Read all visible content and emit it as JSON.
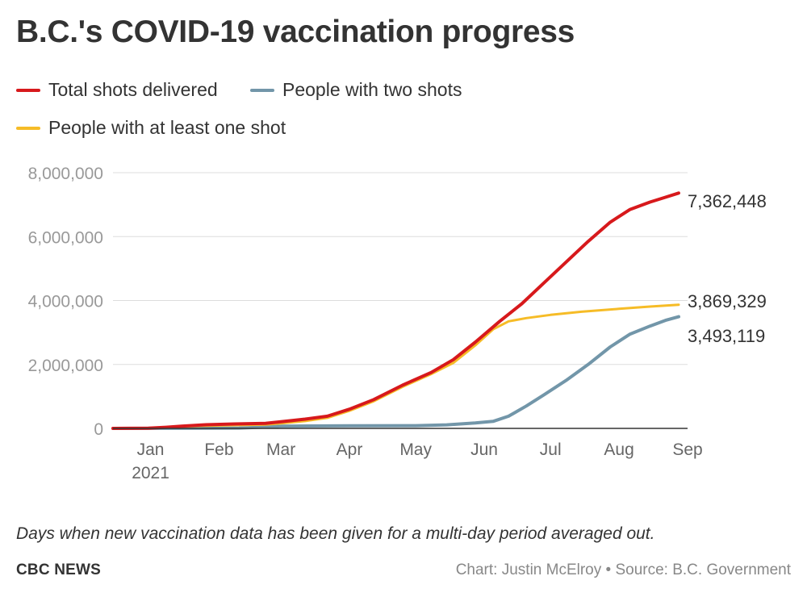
{
  "title": "B.C.'s COVID-19 vaccination progress",
  "footnote": "Days when new vaccination data has been given for a multi-day period averaged out.",
  "brand": "CBC NEWS",
  "credit": "Chart: Justin McElroy • Source: B.C. Government",
  "chart_data": {
    "type": "line",
    "x_unit": "date",
    "ylim": [
      0,
      8000000
    ],
    "xlim": [
      "2020-12-15",
      "2021-09-01"
    ],
    "y_ticks": [
      {
        "value": 0,
        "label": "0"
      },
      {
        "value": 2000000,
        "label": "2,000,000"
      },
      {
        "value": 4000000,
        "label": "4,000,000"
      },
      {
        "value": 6000000,
        "label": "6,000,000"
      },
      {
        "value": 8000000,
        "label": "8,000,000"
      }
    ],
    "x_ticks": [
      {
        "date": "2021-01-01",
        "label": "Jan",
        "sublabel": "2021"
      },
      {
        "date": "2021-02-01",
        "label": "Feb",
        "sublabel": ""
      },
      {
        "date": "2021-03-01",
        "label": "Mar",
        "sublabel": ""
      },
      {
        "date": "2021-04-01",
        "label": "Apr",
        "sublabel": ""
      },
      {
        "date": "2021-05-01",
        "label": "May",
        "sublabel": ""
      },
      {
        "date": "2021-06-01",
        "label": "Jun",
        "sublabel": ""
      },
      {
        "date": "2021-07-01",
        "label": "Jul",
        "sublabel": ""
      },
      {
        "date": "2021-08-01",
        "label": "Aug",
        "sublabel": ""
      },
      {
        "date": "2021-09-01",
        "label": "Sep",
        "sublabel": ""
      }
    ],
    "grid": true,
    "legend_position": "top-left",
    "series": [
      {
        "name": "Total shots delivered",
        "color": "#d7191c",
        "end_label": "7,362,448",
        "points": [
          [
            "2020-12-15",
            0
          ],
          [
            "2020-12-31",
            5000
          ],
          [
            "2021-01-08",
            35000
          ],
          [
            "2021-01-15",
            70000
          ],
          [
            "2021-01-25",
            110000
          ],
          [
            "2021-02-08",
            140000
          ],
          [
            "2021-02-22",
            160000
          ],
          [
            "2021-03-01",
            210000
          ],
          [
            "2021-03-12",
            290000
          ],
          [
            "2021-03-22",
            380000
          ],
          [
            "2021-04-01",
            600000
          ],
          [
            "2021-04-12",
            900000
          ],
          [
            "2021-04-25",
            1350000
          ],
          [
            "2021-05-08",
            1750000
          ],
          [
            "2021-05-18",
            2150000
          ],
          [
            "2021-05-28",
            2700000
          ],
          [
            "2021-06-08",
            3350000
          ],
          [
            "2021-06-18",
            3900000
          ],
          [
            "2021-06-28",
            4550000
          ],
          [
            "2021-07-08",
            5200000
          ],
          [
            "2021-07-18",
            5850000
          ],
          [
            "2021-07-28",
            6450000
          ],
          [
            "2021-08-06",
            6850000
          ],
          [
            "2021-08-15",
            7080000
          ],
          [
            "2021-08-22",
            7230000
          ],
          [
            "2021-08-28",
            7362448
          ]
        ]
      },
      {
        "name": "People with at least one shot",
        "color": "#f6bc27",
        "end_label": "3,869,329",
        "points": [
          [
            "2020-12-15",
            0
          ],
          [
            "2020-12-31",
            5000
          ],
          [
            "2021-01-08",
            30000
          ],
          [
            "2021-01-15",
            55000
          ],
          [
            "2021-01-25",
            80000
          ],
          [
            "2021-02-08",
            100000
          ],
          [
            "2021-02-22",
            120000
          ],
          [
            "2021-03-01",
            160000
          ],
          [
            "2021-03-12",
            230000
          ],
          [
            "2021-03-22",
            330000
          ],
          [
            "2021-04-01",
            550000
          ],
          [
            "2021-04-12",
            850000
          ],
          [
            "2021-04-25",
            1300000
          ],
          [
            "2021-05-08",
            1700000
          ],
          [
            "2021-05-18",
            2050000
          ],
          [
            "2021-05-28",
            2600000
          ],
          [
            "2021-06-05",
            3100000
          ],
          [
            "2021-06-12",
            3350000
          ],
          [
            "2021-06-20",
            3450000
          ],
          [
            "2021-07-01",
            3550000
          ],
          [
            "2021-07-15",
            3650000
          ],
          [
            "2021-08-01",
            3740000
          ],
          [
            "2021-08-15",
            3810000
          ],
          [
            "2021-08-28",
            3869329
          ]
        ]
      },
      {
        "name": "People with two shots",
        "color": "#7296a9",
        "end_label": "3,493,119",
        "points": [
          [
            "2020-12-15",
            0
          ],
          [
            "2021-02-10",
            10000
          ],
          [
            "2021-02-22",
            40000
          ],
          [
            "2021-03-01",
            70000
          ],
          [
            "2021-04-01",
            80000
          ],
          [
            "2021-05-01",
            85000
          ],
          [
            "2021-05-15",
            110000
          ],
          [
            "2021-05-28",
            170000
          ],
          [
            "2021-06-05",
            220000
          ],
          [
            "2021-06-12",
            380000
          ],
          [
            "2021-06-20",
            700000
          ],
          [
            "2021-06-28",
            1050000
          ],
          [
            "2021-07-08",
            1500000
          ],
          [
            "2021-07-18",
            2000000
          ],
          [
            "2021-07-28",
            2550000
          ],
          [
            "2021-08-06",
            2950000
          ],
          [
            "2021-08-15",
            3200000
          ],
          [
            "2021-08-22",
            3380000
          ],
          [
            "2021-08-28",
            3493119
          ]
        ]
      }
    ],
    "legend_rows": [
      [
        0,
        2
      ],
      [
        1
      ]
    ]
  }
}
